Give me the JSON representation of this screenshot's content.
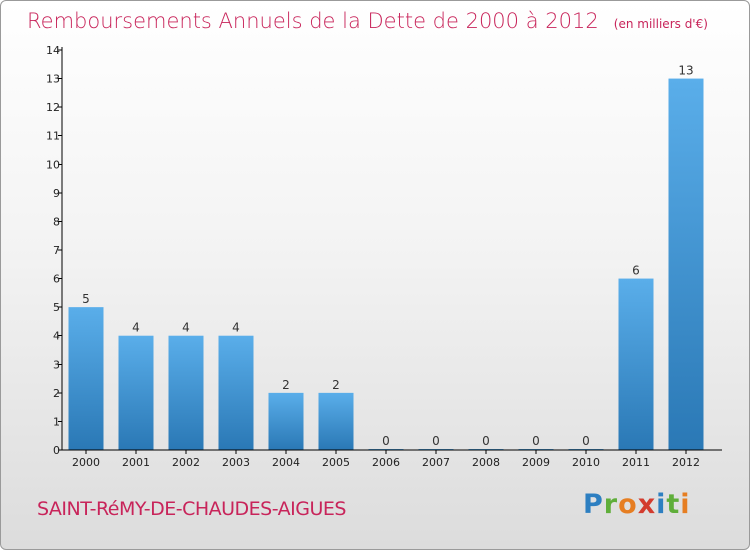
{
  "header": {
    "title": "Remboursements Annuels de la Dette de 2000 à 2012",
    "unit": "(en milliers d'€)"
  },
  "footer": {
    "place": "SAINT-RéMY-DE-CHAUDES-AIGUES",
    "logo_letters": [
      "P",
      "r",
      "o",
      "x",
      "i",
      "t",
      "i"
    ],
    "logo_colors": [
      "#2d7fc1",
      "#5fae3a",
      "#e67e22",
      "#d33c2e",
      "#2d7fc1",
      "#5fae3a",
      "#e67e22"
    ]
  },
  "chart_data": {
    "type": "bar",
    "categories": [
      "2000",
      "2001",
      "2002",
      "2003",
      "2004",
      "2005",
      "2006",
      "2007",
      "2008",
      "2009",
      "2010",
      "2011",
      "2012"
    ],
    "values": [
      5,
      4,
      4,
      4,
      2,
      2,
      0,
      0,
      0,
      0,
      0,
      6,
      13
    ],
    "value_labels": [
      "5",
      "4",
      "4",
      "4",
      "2",
      "2",
      "0",
      "0",
      "0",
      "0",
      "0",
      "6",
      "13"
    ],
    "y_ticks": [
      "0",
      "1",
      "2",
      "3",
      "4",
      "5",
      "6",
      "7",
      "8",
      "9",
      "10",
      "11",
      "12",
      "13",
      "14"
    ],
    "ylim": [
      0,
      14
    ],
    "grid": false,
    "bar_color_light": "#5aaeea",
    "bar_color_dark": "#2a78b5"
  }
}
